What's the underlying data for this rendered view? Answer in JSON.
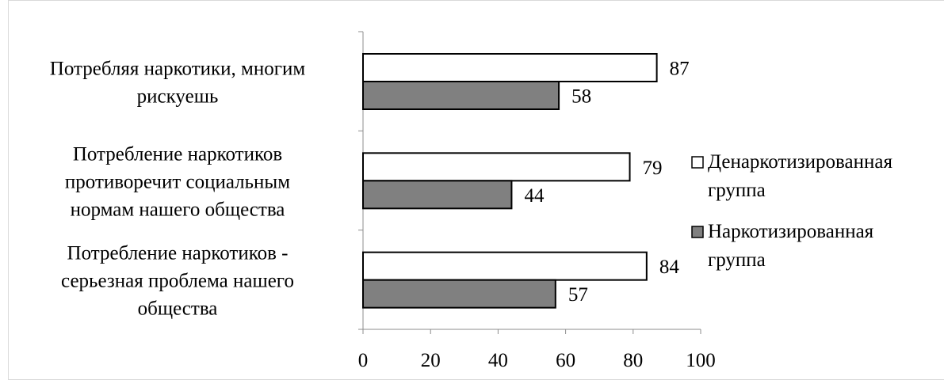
{
  "chart_data": {
    "type": "bar",
    "orientation": "horizontal",
    "categories": [
      [
        "Потребляя наркотики, многим",
        "рискуешь"
      ],
      [
        "Потребление наркотиков",
        "противоречит социальным",
        "нормам нашего общества"
      ],
      [
        "Потребление наркотиков -",
        "серьезная проблема нашего",
        "общества"
      ]
    ],
    "series": [
      {
        "name": [
          "Денаркотизированная",
          "группа"
        ],
        "values": [
          87,
          79,
          84
        ],
        "color": "#ffffff"
      },
      {
        "name": [
          "Наркотизированная",
          "группа"
        ],
        "values": [
          58,
          44,
          57
        ],
        "color": "#808080"
      }
    ],
    "xlim": [
      0,
      100
    ],
    "xticks": [
      0,
      20,
      40,
      60,
      80,
      100
    ],
    "grid": false,
    "legend": "right",
    "data_labels": true
  }
}
